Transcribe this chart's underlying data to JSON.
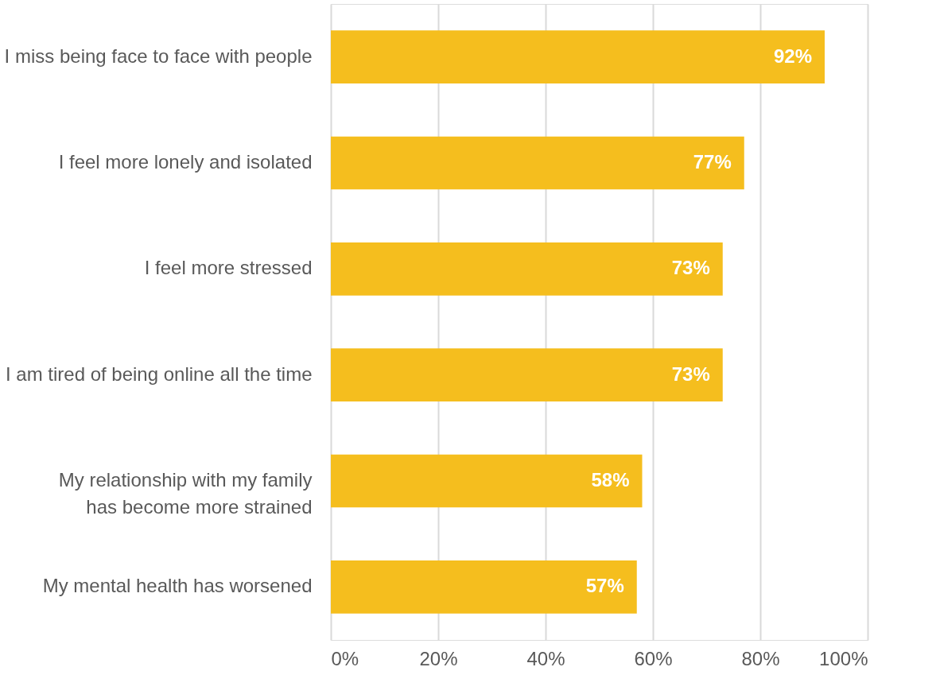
{
  "chart_data": {
    "type": "bar",
    "orientation": "horizontal",
    "categories": [
      "I miss being face to face with people",
      "I feel more lonely and isolated",
      "I feel more stressed",
      "I am tired of being online all the time",
      "My relationship with my family\nhas become more strained",
      "My mental health has worsened"
    ],
    "values": [
      92,
      77,
      73,
      73,
      58,
      57
    ],
    "value_labels": [
      "92%",
      "77%",
      "73%",
      "73%",
      "58%",
      "57%"
    ],
    "color": "#f5be1e",
    "xlim": [
      0,
      100
    ],
    "xticks": [
      {
        "value": 0,
        "label": "0%"
      },
      {
        "value": 20,
        "label": "20%"
      },
      {
        "value": 40,
        "label": "40%"
      },
      {
        "value": 60,
        "label": "60%"
      },
      {
        "value": 80,
        "label": "80%"
      },
      {
        "value": 100,
        "label": "100%"
      }
    ],
    "grid": "x"
  }
}
